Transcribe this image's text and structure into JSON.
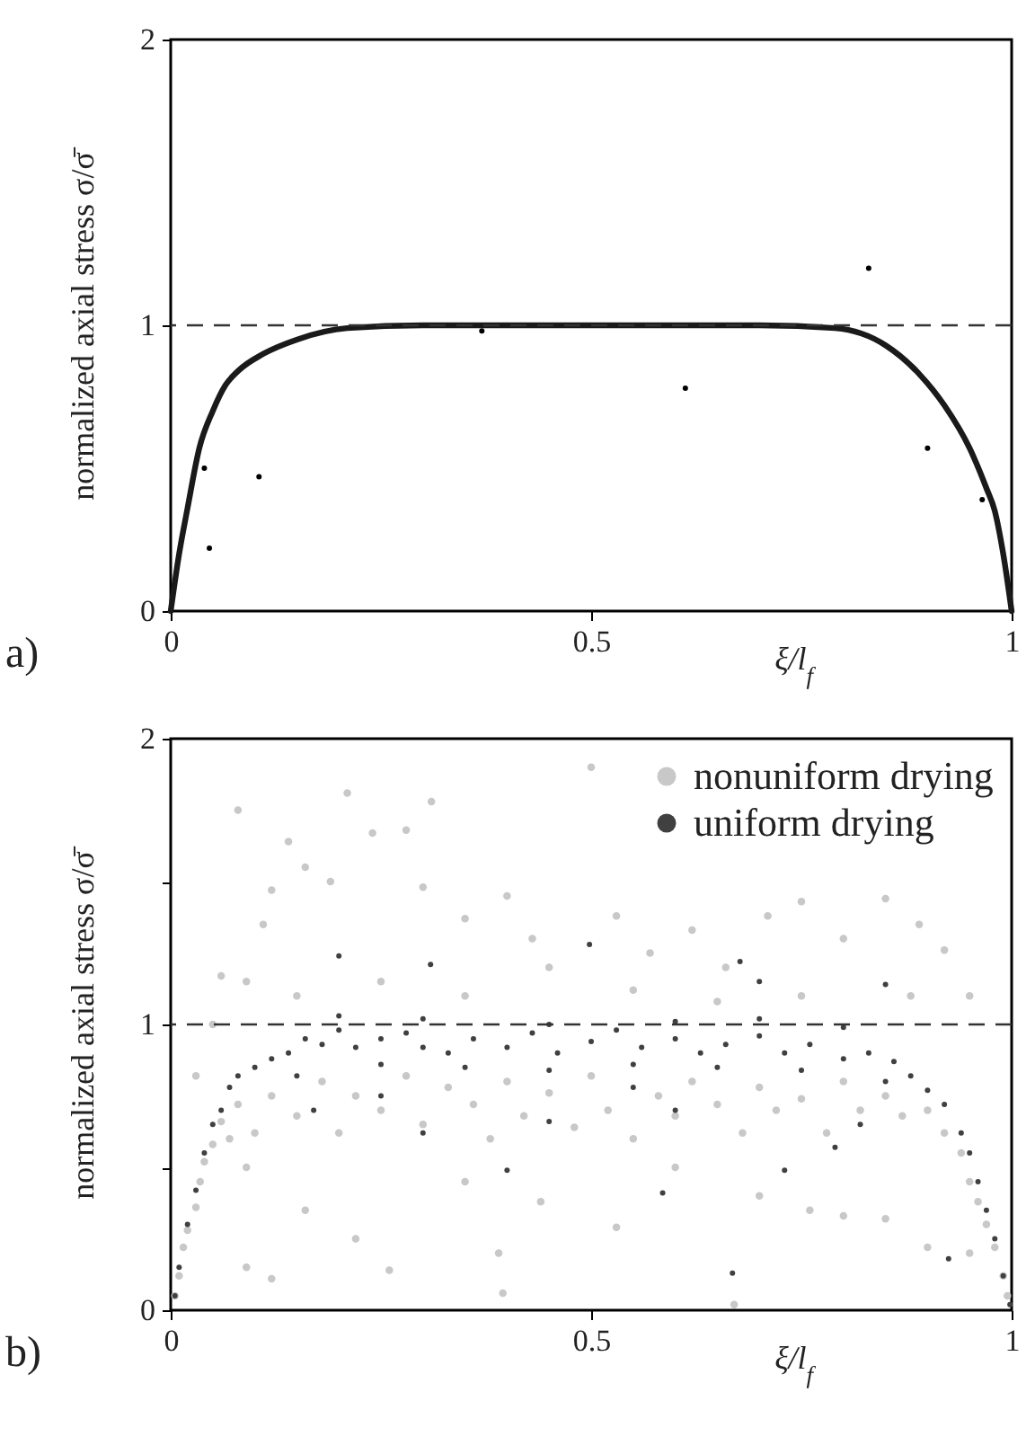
{
  "chart_data": [
    {
      "type": "line",
      "ylabel": "normalized axial stress  σ/σ̄",
      "xlabel": "ξ/l$_{f}$",
      "xlim": [
        0,
        1
      ],
      "ylim": [
        0,
        2
      ],
      "xticks": [
        0,
        0.5,
        1
      ],
      "yticks": [
        0,
        1,
        2
      ],
      "grid": false,
      "annotations": [
        "a)"
      ],
      "ref_lines": [
        {
          "axis": "y",
          "value": 1,
          "line_style": "dashed",
          "color": "#333333"
        }
      ],
      "series": [
        {
          "color": "#1a1a1a",
          "x": [
            0,
            0.01,
            0.02,
            0.034,
            0.05,
            0.065,
            0.08,
            0.11,
            0.15,
            0.21,
            0.3,
            0.4,
            0.5,
            0.6,
            0.7,
            0.79,
            0.85,
            0.89,
            0.92,
            0.95,
            0.97,
            0.98,
            0.99,
            1
          ],
          "values": [
            0,
            0.2,
            0.36,
            0.57,
            0.7,
            0.79,
            0.84,
            0.9,
            0.95,
            0.99,
            1.0,
            1.0,
            1.0,
            1.0,
            1.0,
            0.99,
            0.93,
            0.83,
            0.72,
            0.57,
            0.43,
            0.35,
            0.2,
            0
          ]
        },
        {
          "type": "scatter",
          "color": "#000000",
          "x": [
            0.04,
            0.046,
            0.105,
            0.37,
            0.612,
            0.83,
            0.9,
            0.965
          ],
          "values": [
            0.5,
            0.22,
            0.47,
            0.98,
            0.78,
            1.2,
            0.57,
            0.39
          ]
        }
      ]
    },
    {
      "type": "scatter",
      "ylabel": "normalized axial stress  σ/σ̄",
      "xlabel": "ξ/l$_{f}$",
      "xlim": [
        0,
        1
      ],
      "ylim": [
        0,
        2
      ],
      "xticks": [
        0,
        0.5,
        1
      ],
      "yticks": [
        0,
        {
          "value": 0.5,
          "label": null
        },
        1,
        {
          "value": 1.5,
          "label": null
        },
        2
      ],
      "grid": false,
      "legend": "top right",
      "annotations": [
        "b)"
      ],
      "ref_lines": [
        {
          "axis": "y",
          "value": 1,
          "line_style": "dashed",
          "color": "#333333"
        }
      ],
      "series": [
        {
          "name": "nonuniform drying",
          "color": "#c8c8c8",
          "x": [
            0.005,
            0.01,
            0.015,
            0.02,
            0.03,
            0.035,
            0.04,
            0.05,
            0.06,
            0.07,
            0.08,
            0.09,
            0.1,
            0.03,
            0.05,
            0.06,
            0.09,
            0.11,
            0.12,
            0.08,
            0.14,
            0.16,
            0.19,
            0.21,
            0.24,
            0.28,
            0.31,
            0.3,
            0.35,
            0.4,
            0.43,
            0.45,
            0.5,
            0.53,
            0.57,
            0.62,
            0.66,
            0.71,
            0.75,
            0.8,
            0.85,
            0.89,
            0.92,
            0.95,
            0.15,
            0.25,
            0.35,
            0.55,
            0.65,
            0.75,
            0.88,
            0.12,
            0.15,
            0.18,
            0.2,
            0.22,
            0.25,
            0.28,
            0.3,
            0.33,
            0.36,
            0.38,
            0.4,
            0.42,
            0.45,
            0.48,
            0.5,
            0.52,
            0.55,
            0.58,
            0.6,
            0.62,
            0.65,
            0.68,
            0.7,
            0.72,
            0.75,
            0.78,
            0.8,
            0.82,
            0.85,
            0.87,
            0.9,
            0.92,
            0.94,
            0.95,
            0.96,
            0.97,
            0.98,
            0.99,
            0.995,
            0.09,
            0.12,
            0.16,
            0.22,
            0.26,
            0.35,
            0.395,
            0.39,
            0.44,
            0.53,
            0.6,
            0.67,
            0.7,
            0.76,
            0.8,
            0.85,
            0.9,
            0.95
          ],
          "values": [
            0.05,
            0.12,
            0.22,
            0.28,
            0.36,
            0.45,
            0.52,
            0.58,
            0.66,
            0.6,
            0.72,
            0.5,
            0.62,
            0.82,
            1.0,
            1.17,
            1.15,
            1.35,
            1.47,
            1.75,
            1.64,
            1.55,
            1.5,
            1.81,
            1.67,
            1.68,
            1.78,
            1.48,
            1.37,
            1.45,
            1.3,
            1.2,
            1.9,
            1.38,
            1.25,
            1.33,
            1.2,
            1.38,
            1.43,
            1.3,
            1.44,
            1.35,
            1.26,
            1.1,
            1.1,
            1.15,
            1.1,
            1.12,
            1.08,
            1.1,
            1.1,
            0.75,
            0.68,
            0.8,
            0.62,
            0.75,
            0.7,
            0.82,
            0.65,
            0.78,
            0.72,
            0.6,
            0.8,
            0.68,
            0.76,
            0.64,
            0.82,
            0.7,
            0.6,
            0.75,
            0.68,
            0.8,
            0.72,
            0.62,
            0.78,
            0.7,
            0.74,
            0.62,
            0.8,
            0.7,
            0.75,
            0.68,
            0.7,
            0.62,
            0.55,
            0.45,
            0.38,
            0.3,
            0.22,
            0.12,
            0.05,
            0.15,
            0.11,
            0.35,
            0.25,
            0.14,
            0.45,
            0.06,
            0.2,
            0.38,
            0.29,
            0.5,
            0.02,
            0.4,
            0.35,
            0.33,
            0.32,
            0.22,
            0.2
          ]
        },
        {
          "name": "uniform drying",
          "color": "#404040",
          "x": [
            0.005,
            0.01,
            0.02,
            0.03,
            0.04,
            0.05,
            0.06,
            0.07,
            0.08,
            0.1,
            0.12,
            0.14,
            0.16,
            0.18,
            0.2,
            0.22,
            0.25,
            0.28,
            0.3,
            0.33,
            0.36,
            0.4,
            0.43,
            0.46,
            0.5,
            0.53,
            0.56,
            0.6,
            0.63,
            0.66,
            0.7,
            0.73,
            0.76,
            0.8,
            0.83,
            0.86,
            0.88,
            0.9,
            0.92,
            0.94,
            0.95,
            0.96,
            0.97,
            0.98,
            0.99,
            0.998,
            0.15,
            0.25,
            0.35,
            0.45,
            0.55,
            0.65,
            0.75,
            0.85,
            0.2,
            0.3,
            0.45,
            0.6,
            0.7,
            0.8,
            0.2,
            0.677,
            0.498,
            0.309,
            0.7,
            0.85,
            0.4,
            0.585,
            0.668,
            0.925,
            0.73,
            0.79,
            0.17,
            0.3,
            0.45,
            0.6,
            0.82,
            0.25,
            0.55
          ],
          "values": [
            0.05,
            0.15,
            0.3,
            0.42,
            0.55,
            0.65,
            0.7,
            0.78,
            0.82,
            0.85,
            0.88,
            0.9,
            0.95,
            0.93,
            0.98,
            0.92,
            0.95,
            0.97,
            0.92,
            0.9,
            0.95,
            0.92,
            0.97,
            0.9,
            0.94,
            0.98,
            0.92,
            0.95,
            0.9,
            0.93,
            0.96,
            0.9,
            0.93,
            0.88,
            0.9,
            0.87,
            0.82,
            0.77,
            0.72,
            0.62,
            0.55,
            0.45,
            0.35,
            0.25,
            0.12,
            0.02,
            0.82,
            0.86,
            0.85,
            0.84,
            0.86,
            0.85,
            0.84,
            0.8,
            1.03,
            1.02,
            1.0,
            1.01,
            1.02,
            0.99,
            1.24,
            1.22,
            1.28,
            1.21,
            1.15,
            1.14,
            0.49,
            0.41,
            0.13,
            0.18,
            0.49,
            0.57,
            0.7,
            0.62,
            0.66,
            0.7,
            0.65,
            0.75,
            0.78
          ]
        }
      ]
    }
  ]
}
